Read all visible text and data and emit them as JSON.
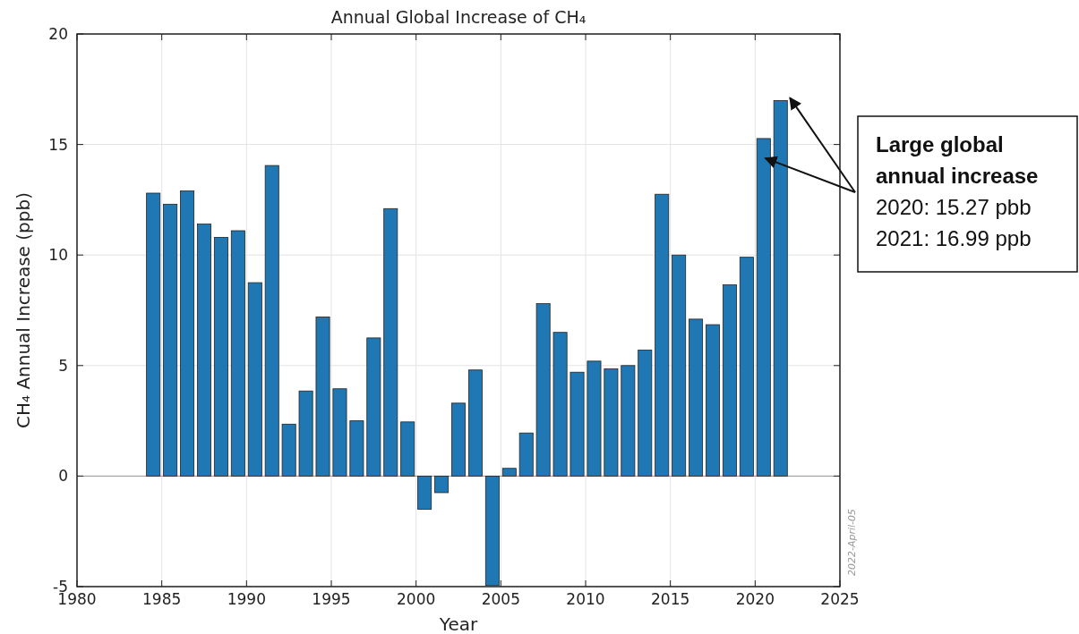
{
  "chart_data": {
    "type": "bar",
    "title": "Annual Global Increase of CH₄",
    "xlabel": "Year",
    "ylabel": "CH₄ Annual Increase (ppb)",
    "x": [
      1984.5,
      1985.5,
      1986.5,
      1987.5,
      1988.5,
      1989.5,
      1990.5,
      1991.5,
      1992.5,
      1993.5,
      1994.5,
      1995.5,
      1996.5,
      1997.5,
      1998.5,
      1999.5,
      2000.5,
      2001.5,
      2002.5,
      2003.5,
      2004.5,
      2005.5,
      2006.5,
      2007.5,
      2008.5,
      2009.5,
      2010.5,
      2011.5,
      2012.5,
      2013.5,
      2014.5,
      2015.5,
      2016.5,
      2017.5,
      2018.5,
      2019.5,
      2020.5,
      2021.5
    ],
    "values": [
      12.8,
      12.3,
      12.9,
      11.4,
      10.8,
      11.1,
      8.75,
      14.05,
      2.35,
      3.85,
      7.2,
      3.95,
      2.5,
      6.25,
      12.1,
      2.45,
      -1.5,
      -0.75,
      3.3,
      4.8,
      -4.95,
      0.35,
      1.95,
      7.8,
      6.5,
      4.7,
      5.2,
      4.85,
      5.0,
      5.7,
      12.75,
      10.0,
      7.1,
      6.85,
      8.65,
      9.9,
      15.27,
      16.99
    ],
    "color": "#1f77b4",
    "xlim": [
      1980,
      2025
    ],
    "xticks": [
      1980,
      1985,
      1990,
      1995,
      2000,
      2005,
      2010,
      2015,
      2020,
      2025
    ],
    "ylim": [
      -5,
      20
    ],
    "yticks": [
      -5,
      0,
      5,
      10,
      15,
      20
    ],
    "grid": true,
    "annotations": [
      "Large global annual increase",
      "2020: 15.27 pbb",
      "2021: 16.99 ppb",
      "2022-April-05"
    ]
  }
}
